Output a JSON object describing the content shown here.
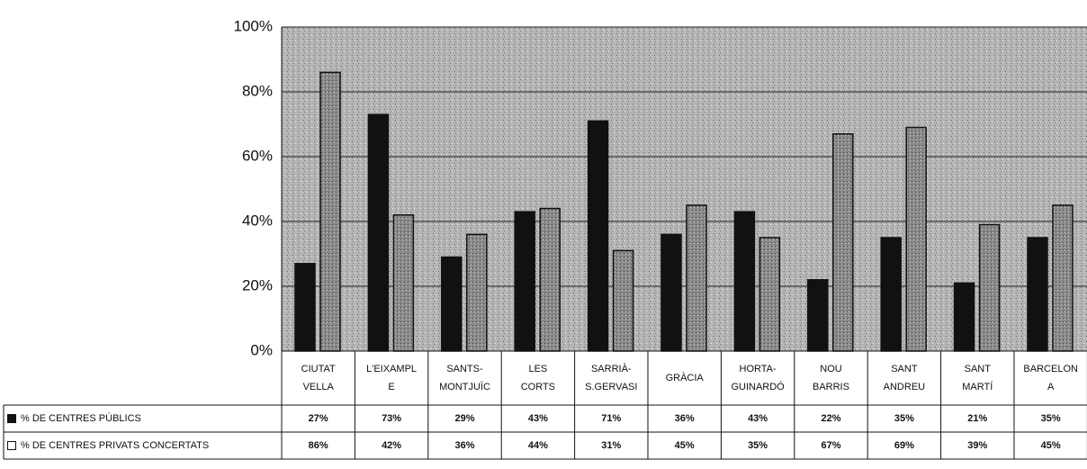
{
  "chart_data": {
    "type": "bar",
    "categories": [
      "CIUTAT\nVELLA",
      "L'EIXAMPL\nE",
      "SANTS-\nMONTJUÏC",
      "LES\nCORTS",
      "SARRIÀ-\nS.GERVASI",
      "GRÀCIA",
      "HORTA-\nGUINARDÓ",
      "NOU\nBARRIS",
      "SANT\nANDREU",
      "SANT\nMARTÍ",
      "BARCELON\nA"
    ],
    "series": [
      {
        "name": "% DE CENTRES PÚBLICS",
        "color": "#111111",
        "values": [
          27,
          73,
          29,
          43,
          71,
          36,
          43,
          22,
          35,
          21,
          35
        ],
        "value_labels": [
          "27%",
          "73%",
          "29%",
          "43%",
          "71%",
          "36%",
          "43%",
          "22%",
          "35%",
          "21%",
          "35%"
        ]
      },
      {
        "name": "% DE CENTRES PRIVATS CONCERTATS",
        "color": "#8a8a8a",
        "values": [
          86,
          42,
          36,
          44,
          31,
          45,
          35,
          67,
          69,
          39,
          45
        ],
        "value_labels": [
          "86%",
          "42%",
          "36%",
          "44%",
          "31%",
          "45%",
          "35%",
          "67%",
          "69%",
          "39%",
          "45%"
        ]
      }
    ],
    "ylim": [
      0,
      100
    ],
    "yticks": [
      {
        "value": 0,
        "label": "0%"
      },
      {
        "value": 20,
        "label": "20%"
      },
      {
        "value": 40,
        "label": "40%"
      },
      {
        "value": 60,
        "label": "60%"
      },
      {
        "value": 80,
        "label": "80%"
      },
      {
        "value": 100,
        "label": "100%"
      }
    ],
    "grid": true
  }
}
